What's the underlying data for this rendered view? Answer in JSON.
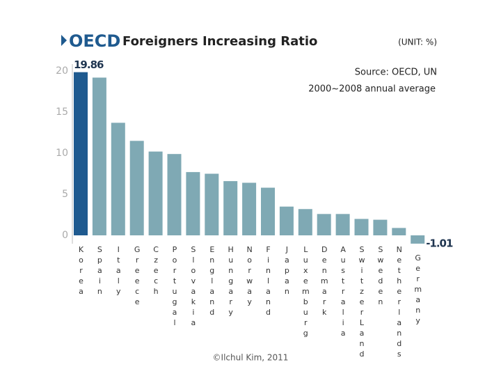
{
  "chart_data": {
    "type": "bar",
    "logo": "OECD",
    "title": "Foreigners Increasing Ratio",
    "unit": "(UNIT: %)",
    "source": "Source: OECD, UN",
    "subtitle": "2000~2008 annual average",
    "credit": "©Ilchul Kim, 2011",
    "categories": [
      "Korea",
      "Spain",
      "Italy",
      "Greece",
      "Czech",
      "Portugal",
      "Slovakia",
      "England",
      "Hungary",
      "Norway",
      "Finland",
      "Japan",
      "Luxemburg",
      "Denmark",
      "Australia",
      "SwitzerLand",
      "Sweden",
      "Netherlands",
      "Germany"
    ],
    "values": [
      19.86,
      19.2,
      13.7,
      11.5,
      10.2,
      9.9,
      7.7,
      7.5,
      6.6,
      6.4,
      5.8,
      3.5,
      3.2,
      2.6,
      2.6,
      2.0,
      1.9,
      0.9,
      -1.01
    ],
    "value_labels": [
      "19.86",
      null,
      null,
      null,
      null,
      null,
      null,
      null,
      null,
      null,
      null,
      null,
      null,
      null,
      null,
      null,
      null,
      null,
      "-1.01"
    ],
    "colors": [
      "#1f5a8f",
      "#7fa9b4",
      "#7fa9b4",
      "#7fa9b4",
      "#7fa9b4",
      "#7fa9b4",
      "#7fa9b4",
      "#7fa9b4",
      "#7fa9b4",
      "#7fa9b4",
      "#7fa9b4",
      "#7fa9b4",
      "#7fa9b4",
      "#7fa9b4",
      "#7fa9b4",
      "#7fa9b4",
      "#7fa9b4",
      "#7fa9b4",
      "#7fa9b4"
    ],
    "ylim": [
      -2.5,
      21
    ],
    "yticks": [
      0,
      5,
      10,
      15,
      20
    ]
  }
}
